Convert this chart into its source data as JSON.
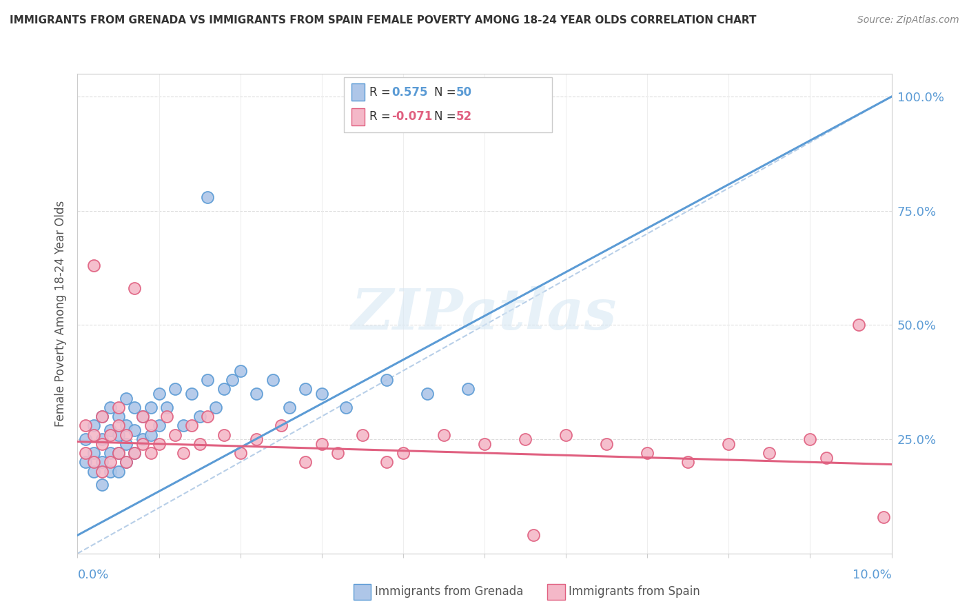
{
  "title": "IMMIGRANTS FROM GRENADA VS IMMIGRANTS FROM SPAIN FEMALE POVERTY AMONG 18-24 YEAR OLDS CORRELATION CHART",
  "source": "Source: ZipAtlas.com",
  "ylabel": "Female Poverty Among 18-24 Year Olds",
  "right_ytick_labels": [
    "25.0%",
    "50.0%",
    "75.0%",
    "100.0%"
  ],
  "right_ytick_values": [
    0.25,
    0.5,
    0.75,
    1.0
  ],
  "xmin": 0.0,
  "xmax": 0.1,
  "ymin": 0.0,
  "ymax": 1.05,
  "grenada_color": "#aec6e8",
  "grenada_edge_color": "#5b9bd5",
  "spain_color": "#f4b8c8",
  "spain_edge_color": "#e06080",
  "grenada_R": 0.575,
  "grenada_N": 50,
  "spain_R": -0.071,
  "spain_N": 52,
  "watermark_text": "ZIPatlas",
  "background_color": "#ffffff",
  "grenada_x": [
    0.001,
    0.001,
    0.002,
    0.002,
    0.002,
    0.003,
    0.003,
    0.003,
    0.003,
    0.004,
    0.004,
    0.004,
    0.004,
    0.005,
    0.005,
    0.005,
    0.005,
    0.006,
    0.006,
    0.006,
    0.006,
    0.007,
    0.007,
    0.007,
    0.008,
    0.008,
    0.009,
    0.009,
    0.01,
    0.01,
    0.011,
    0.012,
    0.013,
    0.014,
    0.015,
    0.016,
    0.017,
    0.018,
    0.019,
    0.02,
    0.022,
    0.024,
    0.026,
    0.028,
    0.03,
    0.033,
    0.038,
    0.043,
    0.048,
    0.016
  ],
  "grenada_y": [
    0.2,
    0.25,
    0.18,
    0.22,
    0.28,
    0.15,
    0.2,
    0.25,
    0.3,
    0.18,
    0.22,
    0.27,
    0.32,
    0.18,
    0.22,
    0.26,
    0.3,
    0.2,
    0.24,
    0.28,
    0.34,
    0.22,
    0.27,
    0.32,
    0.25,
    0.3,
    0.26,
    0.32,
    0.28,
    0.35,
    0.32,
    0.36,
    0.28,
    0.35,
    0.3,
    0.38,
    0.32,
    0.36,
    0.38,
    0.4,
    0.35,
    0.38,
    0.32,
    0.36,
    0.35,
    0.32,
    0.38,
    0.35,
    0.36,
    0.78
  ],
  "spain_x": [
    0.001,
    0.001,
    0.002,
    0.002,
    0.003,
    0.003,
    0.003,
    0.004,
    0.004,
    0.005,
    0.005,
    0.005,
    0.006,
    0.006,
    0.007,
    0.007,
    0.008,
    0.008,
    0.009,
    0.009,
    0.01,
    0.011,
    0.012,
    0.013,
    0.014,
    0.015,
    0.016,
    0.018,
    0.02,
    0.022,
    0.025,
    0.028,
    0.03,
    0.032,
    0.035,
    0.038,
    0.04,
    0.045,
    0.05,
    0.055,
    0.06,
    0.065,
    0.07,
    0.075,
    0.08,
    0.085,
    0.09,
    0.092,
    0.096,
    0.099,
    0.056,
    0.002
  ],
  "spain_y": [
    0.22,
    0.28,
    0.2,
    0.26,
    0.18,
    0.24,
    0.3,
    0.2,
    0.26,
    0.22,
    0.28,
    0.32,
    0.2,
    0.26,
    0.22,
    0.58,
    0.24,
    0.3,
    0.22,
    0.28,
    0.24,
    0.3,
    0.26,
    0.22,
    0.28,
    0.24,
    0.3,
    0.26,
    0.22,
    0.25,
    0.28,
    0.2,
    0.24,
    0.22,
    0.26,
    0.2,
    0.22,
    0.26,
    0.24,
    0.25,
    0.26,
    0.24,
    0.22,
    0.2,
    0.24,
    0.22,
    0.25,
    0.21,
    0.5,
    0.08,
    0.04,
    0.63
  ],
  "grenada_line_x": [
    0.0,
    0.1
  ],
  "grenada_line_y": [
    0.04,
    1.0
  ],
  "spain_line_x": [
    0.0,
    0.1
  ],
  "spain_line_y": [
    0.245,
    0.195
  ],
  "diag_line_x": [
    0.0,
    0.1
  ],
  "diag_line_y": [
    0.0,
    1.0
  ]
}
